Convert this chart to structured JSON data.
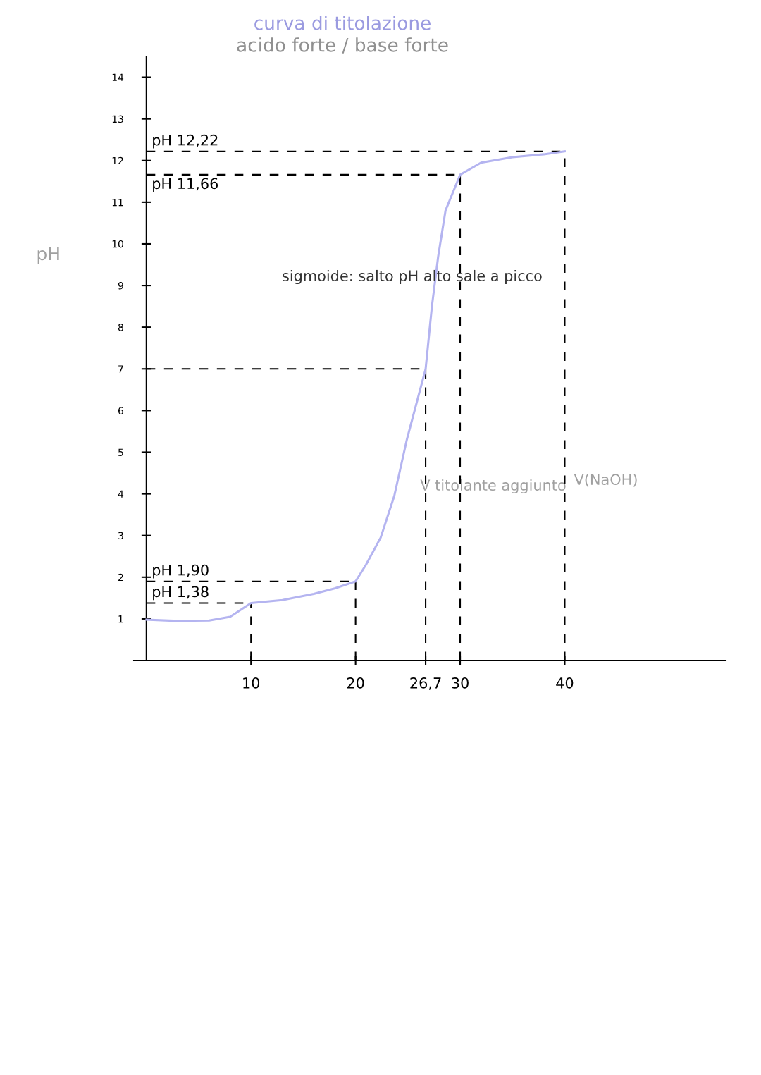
{
  "chart_data": {
    "type": "line",
    "title": "curva di titolazione",
    "subtitle": "acido forte / base forte",
    "ylabel": "pH",
    "annotations": [
      "sigmoide: salto pH alto sale a picco",
      "V titolante aggiunto",
      "V(NaOH)"
    ],
    "x": [
      0,
      3,
      6,
      8,
      10,
      13,
      16,
      18,
      20,
      21,
      22.4,
      23.7,
      24.9,
      26.7,
      27.3,
      27.9,
      28.6,
      30,
      32,
      35,
      38,
      40
    ],
    "series": [
      {
        "color": "#b4b4f0",
        "values": [
          0.98,
          0.95,
          0.96,
          1.05,
          1.38,
          1.45,
          1.6,
          1.73,
          1.9,
          2.3,
          2.95,
          3.95,
          5.3,
          7.0,
          8.5,
          9.7,
          10.8,
          11.66,
          11.95,
          12.08,
          12.15,
          12.22
        ]
      }
    ],
    "xlim": [
      -1.2,
      55.4
    ],
    "ylim": [
      0,
      14.5
    ],
    "xticks": [
      10,
      20,
      {
        "value": 26.7,
        "label": "26,7"
      },
      30,
      40
    ],
    "yticks": [
      1,
      2,
      3,
      4,
      5,
      6,
      7,
      8,
      9,
      10,
      11,
      12,
      13,
      14
    ],
    "ref_lines": [
      {
        "axis": "y",
        "value": 12.22,
        "label": "pH 12,22",
        "line_style": "dashed",
        "color": "#000000"
      },
      {
        "axis": "y",
        "value": 11.66,
        "label": "pH 11,66",
        "line_style": "dashed",
        "color": "#000000"
      },
      {
        "axis": "y",
        "value": 7,
        "line_style": "dashed",
        "color": "#000000"
      },
      {
        "axis": "y",
        "value": 1.9,
        "label": "pH 1,90",
        "line_style": "dashed",
        "color": "#000000"
      },
      {
        "axis": "y",
        "value": 1.38,
        "label": "pH 1,38",
        "line_style": "dashed",
        "color": "#000000"
      },
      {
        "axis": "x",
        "value": 10,
        "line_style": "dashed",
        "color": "#000000"
      },
      {
        "axis": "x",
        "value": 20,
        "line_style": "dashed",
        "color": "#000000"
      },
      {
        "axis": "x",
        "value": 26.7,
        "line_style": "dashed",
        "color": "#000000"
      },
      {
        "axis": "x",
        "value": 30,
        "line_style": "dashed",
        "color": "#000000"
      },
      {
        "axis": "x",
        "value": 40,
        "line_style": "dashed",
        "color": "#000000"
      }
    ],
    "line_style": "solid",
    "marker": "none",
    "grid": false
  }
}
